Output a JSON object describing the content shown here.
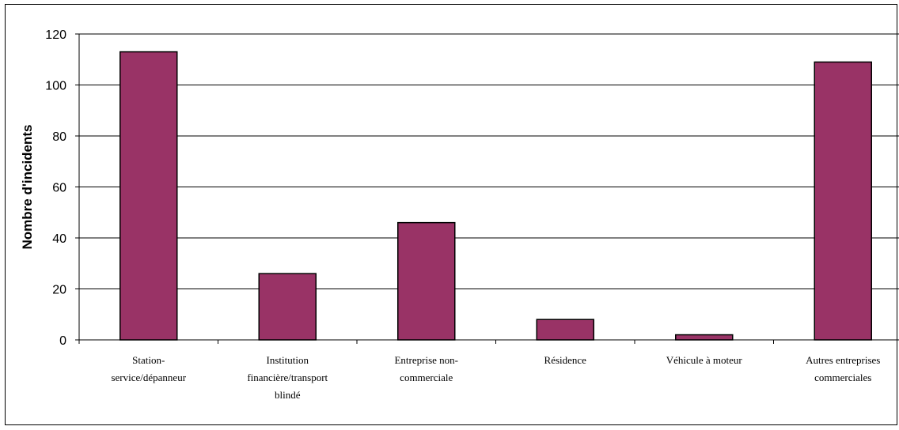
{
  "chart_data": {
    "type": "bar",
    "title": "",
    "xlabel": "",
    "ylabel": "Nombre d'incidents",
    "ylim": [
      0,
      120
    ],
    "yticks": [
      0,
      20,
      40,
      60,
      80,
      100,
      120
    ],
    "grid": true,
    "legend": "none",
    "bar_color": "#993366",
    "categories": [
      [
        "Station-",
        "service/dépanneur"
      ],
      [
        "Institution",
        "financière/transport",
        "blindé"
      ],
      [
        "Entreprise non-",
        "commerciale"
      ],
      [
        "Résidence"
      ],
      [
        "Véhicule à moteur"
      ],
      [
        "Autres entreprises",
        "commerciales"
      ]
    ],
    "values": [
      113,
      26,
      46,
      8,
      2,
      109
    ]
  }
}
